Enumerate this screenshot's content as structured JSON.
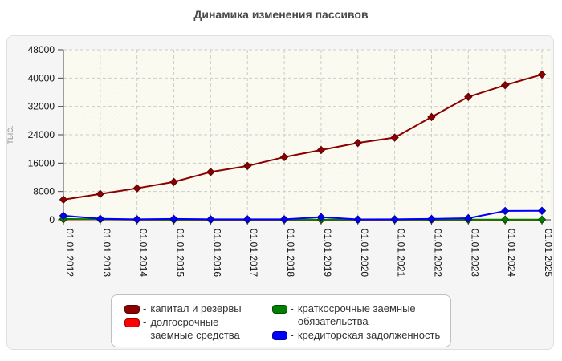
{
  "title": "Динамика изменения пассивов",
  "legend": {
    "dash": "-"
  },
  "chart_data": {
    "type": "line",
    "title": "Динамика изменения пассивов",
    "ylabel": "тыс.",
    "xlabel": "",
    "ylim": [
      0,
      48000
    ],
    "yticks": [
      0,
      8000,
      16000,
      24000,
      32000,
      40000,
      48000
    ],
    "grid": true,
    "legend_position": "bottom",
    "categories": [
      "01.01.2012",
      "01.01.2013",
      "01.01.2014",
      "01.01.2015",
      "01.01.2016",
      "01.01.2017",
      "01.01.2018",
      "01.01.2019",
      "01.01.2020",
      "01.01.2021",
      "01.01.2022",
      "01.01.2023",
      "01.01.2024",
      "01.01.2025"
    ],
    "series": [
      {
        "name": "капитал и резервы",
        "color": "#8b0000",
        "border": "#5c0000",
        "values": [
          5700,
          7300,
          8900,
          10700,
          13500,
          15200,
          17700,
          19700,
          21700,
          23200,
          29000,
          34700,
          38000,
          41000
        ]
      },
      {
        "name": "долгосрочные заемные средства",
        "color": "#ff0000",
        "border": "#990000",
        "values": [
          150,
          100,
          30,
          0,
          0,
          0,
          0,
          0,
          0,
          0,
          0,
          0,
          0,
          0
        ]
      },
      {
        "name": "краткосрочные заемные обязательства",
        "color": "#008000",
        "border": "#004d00",
        "values": [
          250,
          150,
          80,
          50,
          50,
          50,
          50,
          50,
          50,
          50,
          50,
          50,
          50,
          50
        ]
      },
      {
        "name": "кредиторская задолженность",
        "color": "#0000ff",
        "border": "#000099",
        "values": [
          1150,
          300,
          150,
          250,
          150,
          150,
          150,
          750,
          100,
          150,
          250,
          450,
          2500,
          2550
        ]
      }
    ],
    "plot_style": {
      "plot_bg": "#f9f9ee",
      "hatch_color": "#ffffff",
      "gridline_color": "#cccccc",
      "axis_color": "#444444",
      "tick_label_color": "#111111",
      "ylabel_color": "#999999"
    }
  }
}
